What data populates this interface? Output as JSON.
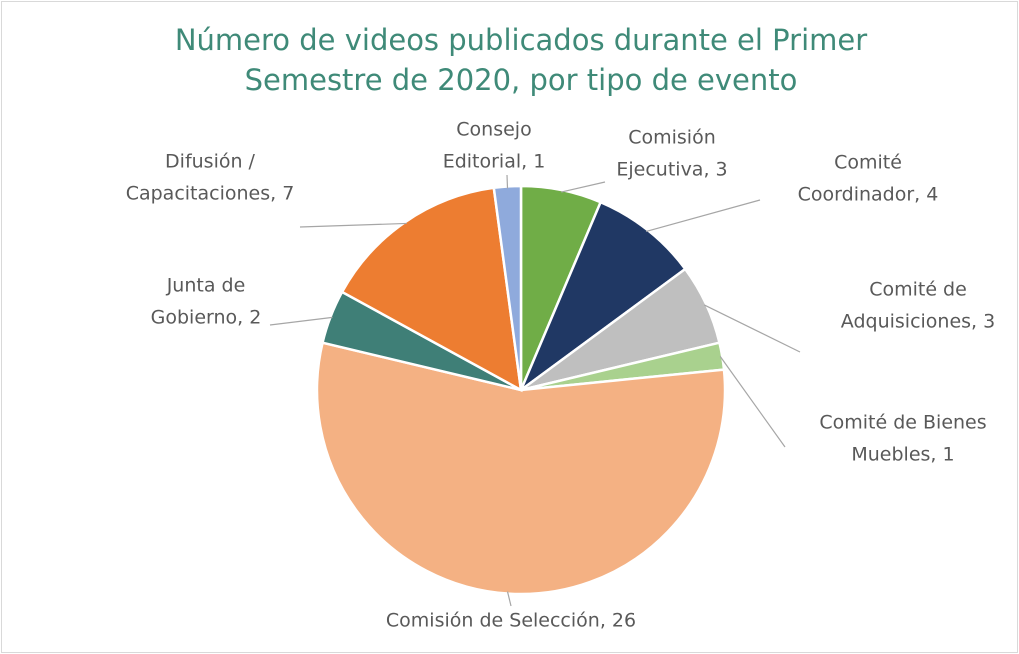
{
  "chart_data": {
    "type": "pie",
    "title": [
      "Número de videos publicados durante el Primer",
      "Semestre de 2020, por tipo de evento"
    ],
    "values": [
      3,
      4,
      3,
      1,
      26,
      2,
      7,
      1
    ],
    "value_labels": [
      [
        "Comisión",
        "Ejecutiva, 3"
      ],
      [
        "Comité",
        "Coordinador, 4"
      ],
      [
        "Comité de",
        "Adquisiciones, 3"
      ],
      [
        "Comité de Bienes",
        "Muebles, 1"
      ],
      [
        "Comisión de Selección, 26"
      ],
      [
        "Junta de",
        "Gobierno, 2"
      ],
      [
        "Difusión /",
        "Capacitaciones, 7"
      ],
      [
        "Consejo",
        "Editorial, 1"
      ]
    ],
    "colors": [
      "#70ad47",
      "#203864",
      "#bfbfbf",
      "#a9d18e",
      "#f4b183",
      "#3f7f77",
      "#ed7d31",
      "#8faadc"
    ]
  }
}
